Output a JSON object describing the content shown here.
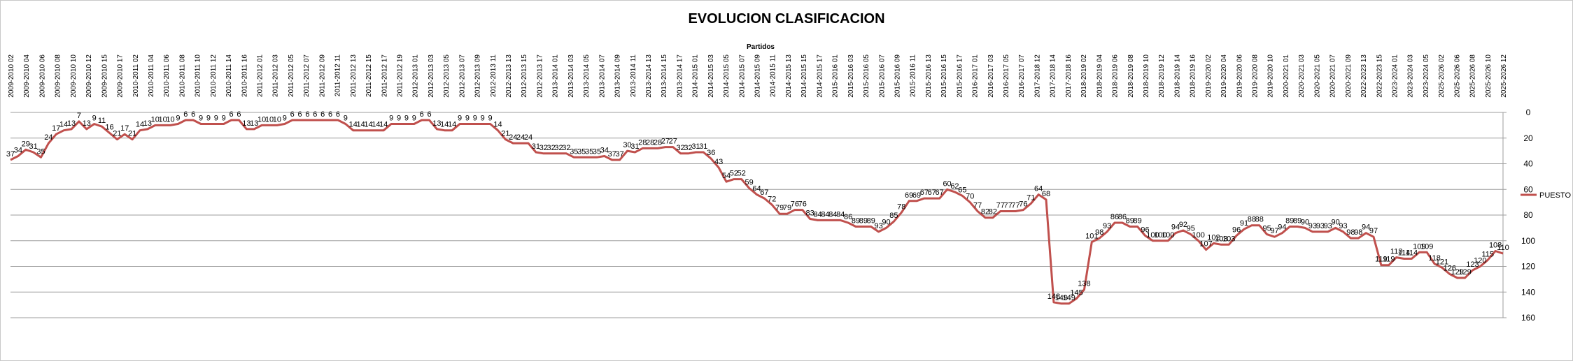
{
  "chart_data": {
    "type": "line",
    "title": "EVOLUCION CLASIFICACION",
    "xlabel": "Partidos",
    "ylabel": "",
    "ylim": [
      0,
      160
    ],
    "y_reversed": true,
    "y_axis_side": "right",
    "y_ticks": [
      0,
      20,
      40,
      60,
      80,
      100,
      120,
      140,
      160
    ],
    "grid": true,
    "legend_position": "right",
    "line_color": "#c0504d",
    "series": [
      {
        "name": "PUESTO",
        "values": [
          37,
          34,
          29,
          31,
          35,
          24,
          17,
          14,
          13,
          7,
          13,
          9,
          11,
          16,
          21,
          17,
          21,
          14,
          13,
          10,
          10,
          10,
          9,
          6,
          6,
          9,
          9,
          9,
          9,
          6,
          6,
          13,
          13,
          10,
          10,
          10,
          9,
          6,
          6,
          6,
          6,
          6,
          6,
          6,
          9,
          14,
          14,
          14,
          14,
          14,
          9,
          9,
          9,
          9,
          6,
          6,
          13,
          14,
          14,
          9,
          9,
          9,
          9,
          9,
          14,
          21,
          24,
          24,
          24,
          31,
          32,
          32,
          32,
          32,
          35,
          35,
          35,
          35,
          34,
          37,
          37,
          30,
          31,
          28,
          28,
          28,
          27,
          27,
          32,
          32,
          31,
          31,
          36,
          43,
          54,
          52,
          52,
          59,
          64,
          67,
          72,
          79,
          79,
          76,
          76,
          83,
          84,
          84,
          84,
          84,
          86,
          89,
          89,
          89,
          93,
          90,
          85,
          78,
          69,
          69,
          67,
          67,
          67,
          60,
          62,
          65,
          70,
          77,
          82,
          82,
          77,
          77,
          77,
          76,
          71,
          64,
          68,
          148,
          149,
          149,
          145,
          138,
          101,
          98,
          93,
          86,
          86,
          89,
          89,
          96,
          100,
          100,
          100,
          94,
          92,
          95,
          100,
          107,
          102,
          103,
          103,
          96,
          91,
          88,
          88,
          95,
          97,
          94,
          89,
          89,
          90,
          93,
          93,
          93,
          90,
          93,
          98,
          98,
          94,
          97,
          119,
          119,
          113,
          114,
          114,
          109,
          109,
          118,
          121,
          126,
          129,
          129,
          123,
          120,
          115,
          108,
          110
        ]
      }
    ],
    "x_tick_labels": [
      "2009-2010 02",
      "2009-2010 04",
      "2009-2010 06",
      "2009-2010 08",
      "2009-2010 10",
      "2009-2010 12",
      "2009-2010 15",
      "2009-2010 17",
      "2010-2011 02",
      "2010-2011 04",
      "2010-2011 06",
      "2010-2011 08",
      "2010-2011 10",
      "2010-2011 12",
      "2010-2011 14",
      "2010-2011 16",
      "2011-2012 01",
      "2011-2012 03",
      "2011-2012 05",
      "2011-2012 07",
      "2011-2012 09",
      "2011-2012 11",
      "2011-2012 13",
      "2011-2012 15",
      "2011-2012 17",
      "2011-2012 19",
      "2012-2013 01",
      "2012-2013 03",
      "2012-2013 05",
      "2012-2013 07",
      "2012-2013 09",
      "2012-2013 11",
      "2012-2013 13",
      "2012-2013 15",
      "2012-2013 17",
      "2013-2014 01",
      "2013-2014 03",
      "2013-2014 05",
      "2013-2014 07",
      "2013-2014 09",
      "2013-2014 11",
      "2013-2014 13",
      "2013-2014 15",
      "2013-2014 17",
      "2014-2015 01",
      "2014-2015 03",
      "2014-2015 05",
      "2014-2015 07",
      "2014-2015 09",
      "2014-2015 11",
      "2014-2015 13",
      "2014-2015 15",
      "2014-2015 17",
      "2015-2016 01",
      "2015-2016 03",
      "2015-2016 05",
      "2015-2016 07",
      "2015-2016 09",
      "2015-2016 11",
      "2015-2016 13",
      "2015-2016 15",
      "2015-2016 17",
      "2016-2017 01",
      "2016-2017 03",
      "2016-2017 05",
      "2016-2017 07",
      "2017-2018 12",
      "2017-2018 14",
      "2017-2018 16",
      "2018-2019 02",
      "2018-2019 04",
      "2018-2019 06",
      "2018-2019 08",
      "2018-2019 10",
      "2018-2019 12",
      "2018-2019 14",
      "2018-2019 16",
      "2019-2020 02",
      "2019-2020 04",
      "2019-2020 06",
      "2019-2020 08",
      "2019-2020 10",
      "2020-2021 01",
      "2020-2021 03",
      "2020-2021 05",
      "2020-2021 07",
      "2020-2021 09",
      "2022-2023 13",
      "2022-2023 15",
      "2023-2024 01",
      "2023-2024 03",
      "2023-2024 05",
      "2025-2026 02",
      "2025-2026 06",
      "2025-2026 08",
      "2025-2026 10",
      "2025-2026 12"
    ]
  }
}
